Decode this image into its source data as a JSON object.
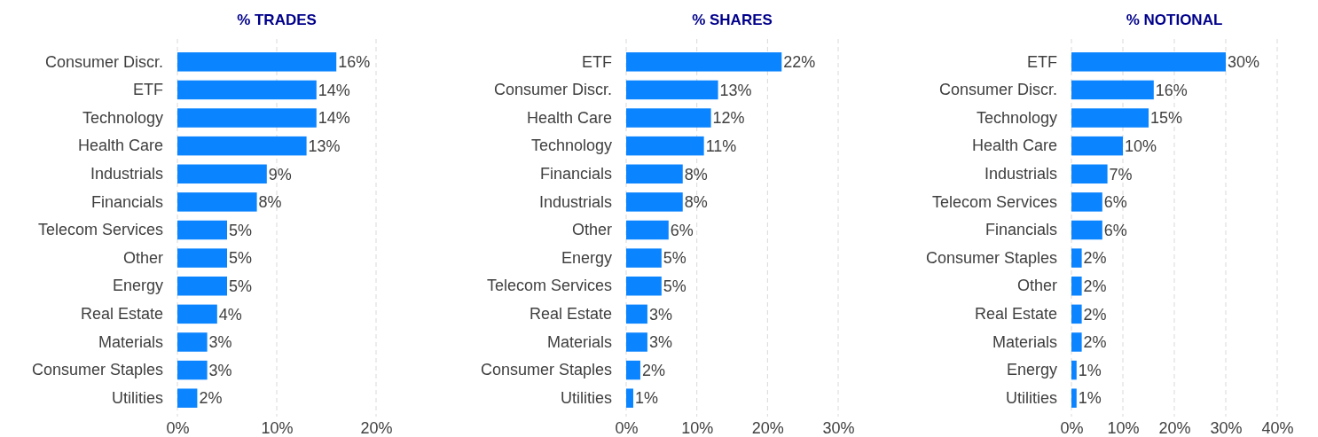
{
  "chart_data": [
    {
      "type": "bar",
      "orientation": "horizontal",
      "title": "% TRADES",
      "categories": [
        "Consumer Discr.",
        "ETF",
        "Technology",
        "Health Care",
        "Industrials",
        "Financials",
        "Telecom Services",
        "Other",
        "Energy",
        "Real Estate",
        "Materials",
        "Consumer Staples",
        "Utilities"
      ],
      "values": [
        16,
        14,
        14,
        13,
        9,
        8,
        5,
        5,
        5,
        4,
        3,
        3,
        2
      ],
      "color": "#0a84ff",
      "xlim": [
        0,
        20
      ],
      "xticks": [
        {
          "value": 0,
          "label": "0%"
        },
        {
          "value": 10,
          "label": "10%"
        },
        {
          "value": 20,
          "label": "20%"
        }
      ],
      "grid": "x",
      "value_labels": [
        "16%",
        "14%",
        "14%",
        "13%",
        "9%",
        "8%",
        "5%",
        "5%",
        "5%",
        "4%",
        "3%",
        "3%",
        "2%"
      ]
    },
    {
      "type": "bar",
      "orientation": "horizontal",
      "title": "% SHARES",
      "categories": [
        "ETF",
        "Consumer Discr.",
        "Health Care",
        "Technology",
        "Financials",
        "Industrials",
        "Other",
        "Energy",
        "Telecom Services",
        "Real Estate",
        "Materials",
        "Consumer Staples",
        "Utilities"
      ],
      "values": [
        22,
        13,
        12,
        11,
        8,
        8,
        6,
        5,
        5,
        3,
        3,
        2,
        1
      ],
      "color": "#0a84ff",
      "xlim": [
        0,
        30
      ],
      "xticks": [
        {
          "value": 0,
          "label": "0%"
        },
        {
          "value": 10,
          "label": "10%"
        },
        {
          "value": 20,
          "label": "20%"
        },
        {
          "value": 30,
          "label": "30%"
        }
      ],
      "grid": "x",
      "value_labels": [
        "22%",
        "13%",
        "12%",
        "11%",
        "8%",
        "8%",
        "6%",
        "5%",
        "5%",
        "3%",
        "3%",
        "2%",
        "1%"
      ]
    },
    {
      "type": "bar",
      "orientation": "horizontal",
      "title": "% NOTIONAL",
      "categories": [
        "ETF",
        "Consumer Discr.",
        "Technology",
        "Health Care",
        "Industrials",
        "Telecom Services",
        "Financials",
        "Consumer Staples",
        "Other",
        "Real Estate",
        "Materials",
        "Energy",
        "Utilities"
      ],
      "values": [
        30,
        16,
        15,
        10,
        7,
        6,
        6,
        2,
        2,
        2,
        2,
        1,
        1
      ],
      "color": "#0a84ff",
      "xlim": [
        0,
        40
      ],
      "xticks": [
        {
          "value": 0,
          "label": "0%"
        },
        {
          "value": 10,
          "label": "10%"
        },
        {
          "value": 20,
          "label": "20%"
        },
        {
          "value": 30,
          "label": "30%"
        },
        {
          "value": 40,
          "label": "40%"
        }
      ],
      "grid": "x",
      "value_labels": [
        "30%",
        "16%",
        "15%",
        "10%",
        "7%",
        "6%",
        "6%",
        "2%",
        "2%",
        "2%",
        "2%",
        "1%",
        "1%"
      ]
    }
  ]
}
